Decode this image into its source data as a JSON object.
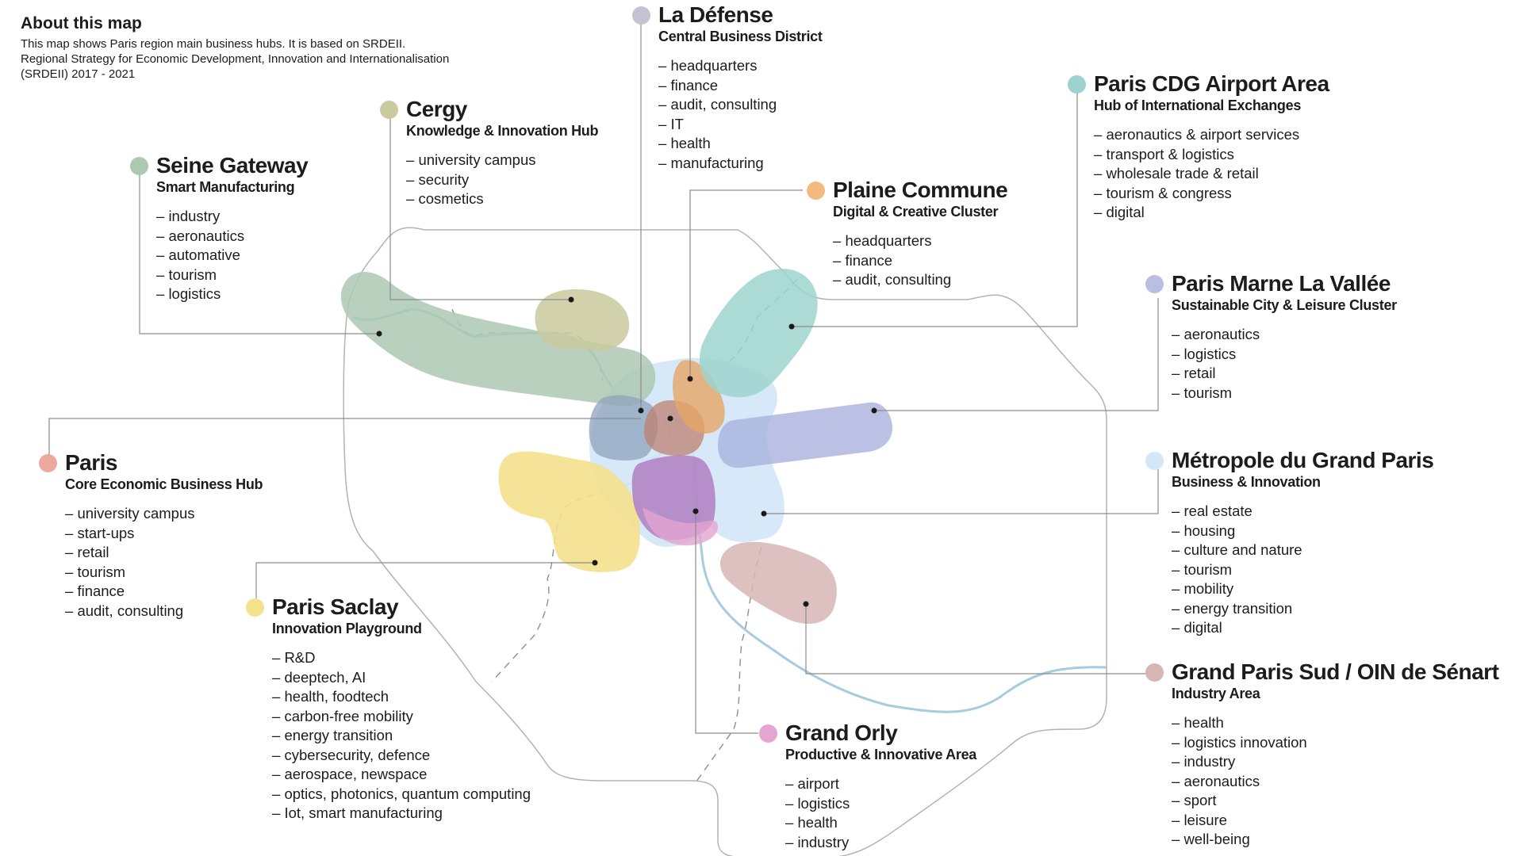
{
  "about": {
    "title": "About this map",
    "lines": [
      "This map shows Paris region main business hubs. It is based on SRDEII.",
      "Regional Strategy for Economic Development, Innovation and Internationalisation",
      "(SRDEII) 2017 - 2021"
    ]
  },
  "hubs": [
    {
      "id": "la-defense",
      "name": "La Défense",
      "subtitle": "Central Business District",
      "color": "#c4c2d3",
      "items": [
        "headquarters",
        "finance",
        "audit, consulting",
        "IT",
        "health",
        "manufacturing"
      ]
    },
    {
      "id": "cergy",
      "name": "Cergy",
      "subtitle": "Knowledge & Innovation Hub",
      "color": "#c9ca9e",
      "items": [
        "university campus",
        "security",
        "cosmetics"
      ]
    },
    {
      "id": "seine-gateway",
      "name": "Seine Gateway",
      "subtitle": "Smart Manufacturing",
      "color": "#acc8b1",
      "items": [
        "industry",
        "aeronautics",
        "automative",
        "tourism",
        "logistics"
      ]
    },
    {
      "id": "paris-cdg",
      "name": "Paris CDG Airport Area",
      "subtitle": "Hub of International Exchanges",
      "color": "#9dd3ce",
      "items": [
        "aeronautics & airport services",
        "transport & logistics",
        "wholesale trade & retail",
        "tourism & congress",
        "digital"
      ]
    },
    {
      "id": "plaine-commune",
      "name": "Plaine Commune",
      "subtitle": "Digital & Creative Cluster",
      "color": "#f4b97f",
      "items": [
        "headquarters",
        "finance",
        "audit, consulting"
      ]
    },
    {
      "id": "marne-la-vallee",
      "name": "Paris Marne La Vallée",
      "subtitle": "Sustainable City & Leisure Cluster",
      "color": "#b9bfe2",
      "items": [
        "aeronautics",
        "logistics",
        "retail",
        "tourism"
      ]
    },
    {
      "id": "paris",
      "name": "Paris",
      "subtitle": "Core Economic Business Hub",
      "color": "#ecaa9e",
      "items": [
        "university campus",
        "start-ups",
        "retail",
        "tourism",
        "finance",
        "audit, consulting"
      ]
    },
    {
      "id": "metropole",
      "name": "Métropole du Grand Paris",
      "subtitle": "Business & Innovation",
      "color": "#d3e7f7",
      "items": [
        "real estate",
        "housing",
        "culture and nature",
        "tourism",
        "mobility",
        "energy transition",
        "digital"
      ]
    },
    {
      "id": "paris-saclay",
      "name": "Paris Saclay",
      "subtitle": "Innovation Playground",
      "color": "#f4e18c",
      "items": [
        "R&D",
        "deeptech, AI",
        "health, foodtech",
        "carbon-free mobility",
        "energy transition",
        "cybersecurity, defence",
        "aerospace, newspace",
        "optics, photonics, quantum computing",
        "Iot, smart manufacturing"
      ]
    },
    {
      "id": "grand-paris-sud",
      "name": "Grand Paris Sud / OIN de Sénart",
      "subtitle": "Industry Area",
      "color": "#d7b5b5",
      "items": [
        "health",
        "logistics innovation",
        "industry",
        "aeronautics",
        "sport",
        "leisure",
        "well-being"
      ]
    },
    {
      "id": "grand-orly",
      "name": "Grand Orly",
      "subtitle": "Productive & Innovative Area",
      "color": "#e3a5d1",
      "items": [
        "airport",
        "logistics",
        "health",
        "industry"
      ]
    }
  ]
}
